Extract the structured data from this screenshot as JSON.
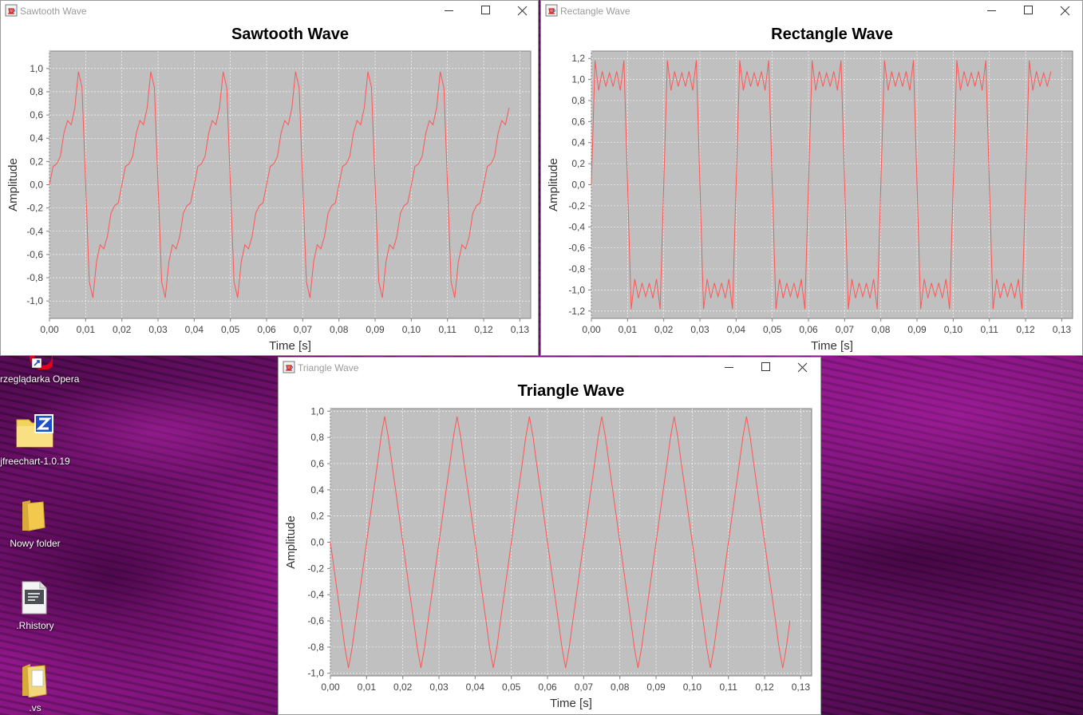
{
  "desktop": {
    "icons": [
      {
        "label": "rzeglądarka Opera",
        "icon": "opera-shortcut-icon"
      },
      {
        "label": "jfreechart-1.0.19",
        "icon": "zip-folder-icon"
      },
      {
        "label": "Nowy folder",
        "icon": "folder-icon"
      },
      {
        "label": ".Rhistory",
        "icon": "file-icon"
      },
      {
        "label": ".vs",
        "icon": "folder-icon"
      }
    ]
  },
  "windows": [
    {
      "title": "Sawtooth Wave",
      "icon": "java-cup-icon",
      "controls": [
        "minimize-icon",
        "maximize-icon",
        "close-icon"
      ]
    },
    {
      "title": "Rectangle Wave",
      "icon": "java-cup-icon",
      "controls": [
        "minimize-icon",
        "maximize-icon",
        "close-icon"
      ]
    },
    {
      "title": "Triangle Wave",
      "icon": "java-cup-icon",
      "controls": [
        "minimize-icon",
        "maximize-icon",
        "close-icon"
      ]
    }
  ],
  "chart_data": [
    {
      "type": "line",
      "title": "Sawtooth Wave",
      "xlabel": "Time [s]",
      "ylabel": "Amplitude",
      "xlim": [
        0.0,
        0.133
      ],
      "ylim": [
        -1.15,
        1.15
      ],
      "xticks": [
        "0,00",
        "0,01",
        "0,02",
        "0,03",
        "0,04",
        "0,05",
        "0,06",
        "0,07",
        "0,08",
        "0,09",
        "0,10",
        "0,11",
        "0,12",
        "0,13"
      ],
      "yticks": [
        "-1,0",
        "-0,8",
        "-0,6",
        "-0,4",
        "-0,2",
        "0,0",
        "0,2",
        "0,4",
        "0,6",
        "0,8",
        "1,0"
      ],
      "grid": true,
      "series_color": "#ff5555",
      "plot_bg": "#c0c0c0",
      "waveform": "sawtooth",
      "frequency_hz": 50,
      "harmonics": 5,
      "phase_shift_s": 0.0,
      "sample_step_s": 0.001,
      "x_end_s": 0.127
    },
    {
      "type": "line",
      "title": "Rectangle Wave",
      "xlabel": "Time [s]",
      "ylabel": "Amplitude",
      "xlim": [
        0.0,
        0.133
      ],
      "ylim": [
        -1.27,
        1.27
      ],
      "xticks": [
        "0,00",
        "0,01",
        "0,02",
        "0,03",
        "0,04",
        "0,05",
        "0,06",
        "0,07",
        "0,08",
        "0,09",
        "0,10",
        "0,11",
        "0,12",
        "0,13"
      ],
      "yticks": [
        "-1,2",
        "-1,0",
        "-0,8",
        "-0,6",
        "-0,4",
        "-0,2",
        "0,0",
        "0,2",
        "0,4",
        "0,6",
        "0,8",
        "1,0",
        "1,2"
      ],
      "grid": true,
      "series_color": "#ff5555",
      "plot_bg": "#c0c0c0",
      "waveform": "square",
      "frequency_hz": 50,
      "harmonics": 5,
      "phase_shift_s": 0.0,
      "sample_step_s": 0.001,
      "x_end_s": 0.127
    },
    {
      "type": "line",
      "title": "Triangle Wave",
      "xlabel": "Time [s]",
      "ylabel": "Amplitude",
      "xlim": [
        0.0,
        0.133
      ],
      "ylim": [
        -1.02,
        1.02
      ],
      "xticks": [
        "0,00",
        "0,01",
        "0,02",
        "0,03",
        "0,04",
        "0,05",
        "0,06",
        "0,07",
        "0,08",
        "0,09",
        "0,10",
        "0,11",
        "0,12",
        "0,13"
      ],
      "yticks": [
        "-1,0",
        "-0,8",
        "-0,6",
        "-0,4",
        "-0,2",
        "0,0",
        "0,2",
        "0,4",
        "0,6",
        "0,8",
        "1,0"
      ],
      "grid": true,
      "series_color": "#ff5555",
      "plot_bg": "#c0c0c0",
      "waveform": "triangle",
      "frequency_hz": 50,
      "harmonics": 5,
      "phase_shift_s": 0.0,
      "sample_step_s": 0.001,
      "x_end_s": 0.127
    }
  ]
}
